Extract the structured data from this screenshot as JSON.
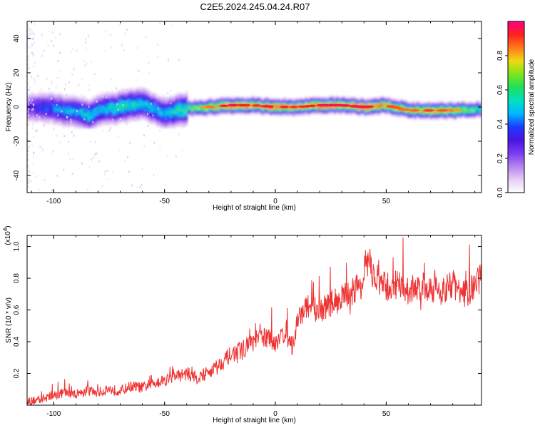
{
  "title": "C2E5.2024.245.04.24.R07",
  "colors": {
    "snr_line": "#ee3333",
    "axis": "#000000",
    "colormap": [
      "#ffffff",
      "#e6ccf6",
      "#b583f0",
      "#7a3bf0",
      "#4a14e0",
      "#1a3cff",
      "#00b8ff",
      "#00e0c0",
      "#1fe05a",
      "#7fe51a",
      "#f0d814",
      "#ff7a1a",
      "#ff2020",
      "#ff0080"
    ]
  },
  "chart_data": [
    {
      "type": "heatmap",
      "xlabel": "Height of straight line (km)",
      "ylabel": "Frequency (Hz)",
      "xlim": [
        -112,
        93
      ],
      "ylim": [
        -50,
        50
      ],
      "xticks": [
        -100,
        -50,
        0,
        50
      ],
      "yticks": [
        -40,
        -20,
        0,
        20,
        40
      ],
      "colorbar": {
        "label": "Normalized spectral amplitude",
        "range": [
          0,
          1
        ],
        "ticks": [
          0.0,
          0.2,
          0.4,
          0.6,
          0.8
        ]
      },
      "ridge": {
        "x": [
          -112,
          -100,
          -90,
          -85,
          -80,
          -70,
          -60,
          -55,
          -50,
          -45,
          -40,
          -30,
          -20,
          -10,
          0,
          10,
          20,
          30,
          40,
          50,
          60,
          70,
          80,
          93
        ],
        "freq": [
          0,
          -1,
          -3,
          -5,
          -2,
          0,
          2,
          -1,
          -4,
          -2,
          -1,
          0,
          1,
          1,
          0,
          0,
          1,
          1,
          0,
          1,
          -2,
          -2,
          -2,
          -1
        ],
        "peak_amplitude": [
          0.3,
          0.45,
          0.5,
          0.55,
          0.5,
          0.6,
          0.55,
          0.5,
          0.5,
          0.6,
          0.65,
          0.85,
          0.95,
          0.9,
          0.95,
          0.9,
          0.95,
          0.95,
          0.95,
          0.9,
          0.85,
          0.9,
          0.85,
          0.6
        ]
      }
    },
    {
      "type": "line",
      "xlabel": "Height of straight line (km)",
      "ylabel": "SNR (10 * v/v)",
      "y_multiplier": "(x10^4)",
      "xlim": [
        -112,
        93
      ],
      "ylim": [
        0,
        1.07
      ],
      "xticks": [
        -100,
        -50,
        0,
        50
      ],
      "yticks": [
        0.2,
        0.4,
        0.6,
        0.8,
        1.0
      ],
      "series": [
        {
          "x": [
            -112,
            -105,
            -100,
            -95,
            -90,
            -85,
            -80,
            -75,
            -70,
            -65,
            -60,
            -55,
            -50,
            -45,
            -40,
            -35,
            -30,
            -25,
            -20,
            -15,
            -10,
            -5,
            0,
            5,
            8,
            10,
            15,
            20,
            25,
            30,
            35,
            40,
            42,
            45,
            50,
            55,
            60,
            65,
            70,
            75,
            80,
            85,
            90,
            93
          ],
          "y": [
            0.02,
            0.04,
            0.06,
            0.08,
            0.07,
            0.09,
            0.08,
            0.1,
            0.09,
            0.12,
            0.11,
            0.14,
            0.16,
            0.18,
            0.2,
            0.17,
            0.21,
            0.26,
            0.32,
            0.35,
            0.4,
            0.43,
            0.4,
            0.47,
            0.35,
            0.55,
            0.62,
            0.6,
            0.64,
            0.68,
            0.72,
            0.78,
            0.9,
            0.8,
            0.74,
            0.76,
            0.72,
            0.75,
            0.73,
            0.72,
            0.76,
            0.7,
            0.74,
            0.82
          ]
        }
      ]
    }
  ]
}
